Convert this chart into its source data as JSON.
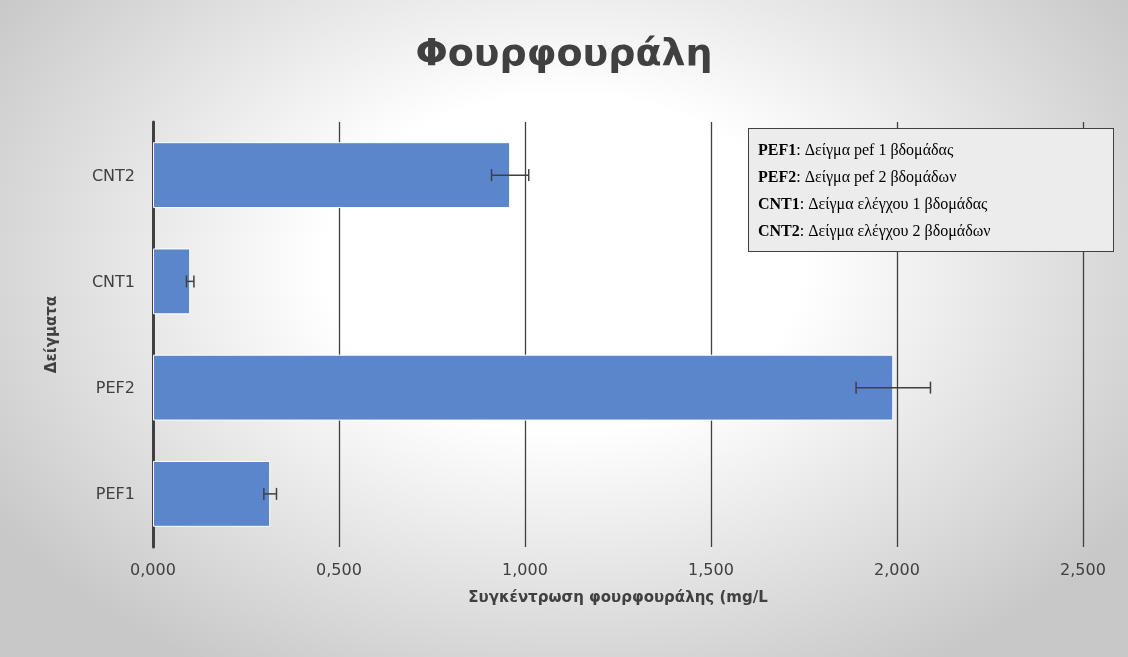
{
  "chart_data": {
    "type": "bar",
    "orientation": "horizontal",
    "title": "Φουρφουράλη",
    "xlabel": "Συγκέντρωση φουρφουράλης (mg/L",
    "ylabel": "Δείγματα",
    "categories": [
      "CNT2",
      "CNT1",
      "PEF2",
      "PEF1"
    ],
    "values": [
      0.96,
      0.1,
      1.99,
      0.315
    ],
    "errors": [
      0.05,
      0.01,
      0.1,
      0.017
    ],
    "color": "#5b86cc",
    "xlim": [
      0,
      2.5
    ],
    "xticks": [
      {
        "value": 0,
        "label": "0,000"
      },
      {
        "value": 0.5,
        "label": "0,500"
      },
      {
        "value": 1,
        "label": "1,000"
      },
      {
        "value": 1.5,
        "label": "1,500"
      },
      {
        "value": 2,
        "label": "2,000"
      },
      {
        "value": 2.5,
        "label": "2,500"
      }
    ],
    "grid": "x",
    "annotations": [
      "PEF1: Δείγμα pef 1 βδομάδας",
      "PEF2: Δείγμα pef 2 βδομάδων",
      "CNT1: Δείγμα ελέγχου 1 βδομάδας",
      "CNT2: Δείγμα ελέγχου 2 βδομάδων"
    ]
  }
}
